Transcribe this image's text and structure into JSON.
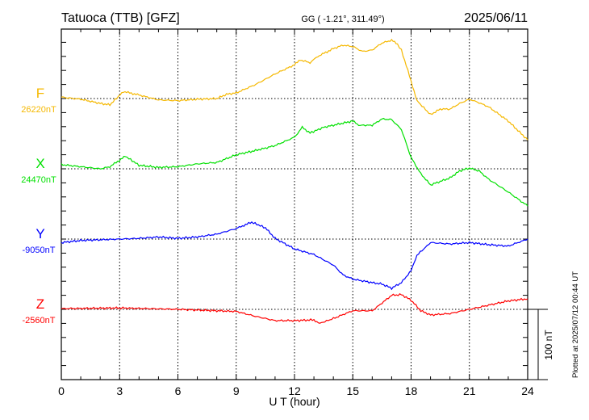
{
  "chart_data": {
    "type": "line",
    "title": "Tatuoca (TTB)  [GFZ]",
    "subtitle": "GG ( -1.21°, 311.49°)",
    "date": "2025/06/11",
    "xlabel": "U T (hour)",
    "xlim": [
      0,
      24
    ],
    "xticks": [
      "0",
      "3",
      "6",
      "9",
      "12",
      "15",
      "18",
      "21",
      "24"
    ],
    "scale_bar_label": "100 nT",
    "scale_bar_nT": 100,
    "plotted_note": "Plotted at 2025/07/12 00:44 UT",
    "grid": true,
    "series": [
      {
        "name": "F",
        "baseline_label": "26220nT",
        "color": "#f5b800",
        "x": [
          0,
          1,
          2,
          2.5,
          3.2,
          4,
          5,
          6,
          7,
          8,
          8.5,
          9,
          10,
          11,
          12,
          12.3,
          12.8,
          13.2,
          14,
          14.5,
          15,
          15.5,
          16,
          16.5,
          17,
          17.3,
          17.5,
          18,
          18.3,
          19,
          19.5,
          20,
          20.5,
          21,
          21.5,
          22,
          23,
          24
        ],
        "values": [
          2,
          -1,
          -7,
          -9,
          10,
          5,
          -2,
          -3,
          -1,
          0,
          6,
          8,
          20,
          35,
          48,
          55,
          51,
          60,
          71,
          76,
          74,
          67,
          69,
          79,
          83,
          77,
          69,
          25,
          -3,
          -23,
          -15,
          -15,
          -7,
          -1,
          -6,
          -12,
          -32,
          -59
        ]
      },
      {
        "name": "X",
        "baseline_label": "24470nT",
        "color": "#00e000",
        "x": [
          0,
          1,
          2,
          2.5,
          3.3,
          4,
          5,
          6,
          7,
          8,
          9,
          10,
          11,
          12,
          12.4,
          12.8,
          13.5,
          14,
          15,
          15.3,
          16,
          16.5,
          17,
          17.5,
          18,
          18.5,
          19,
          20,
          20.5,
          21,
          21.5,
          22,
          23,
          24
        ],
        "values": [
          6,
          3,
          0,
          3,
          18,
          5,
          2,
          3,
          7,
          9,
          20,
          26,
          33,
          45,
          59,
          51,
          59,
          62,
          68,
          62,
          62,
          71,
          70,
          56,
          16,
          -7,
          -23,
          -13,
          -3,
          1,
          -3,
          -15,
          -33,
          -53
        ]
      },
      {
        "name": "Y",
        "baseline_label": "-9050nT",
        "color": "#0000ff",
        "x": [
          0,
          1,
          2,
          3,
          4,
          5,
          6,
          7,
          8,
          9,
          9.8,
          10.5,
          11,
          12,
          13,
          14,
          14.5,
          15,
          16,
          16.5,
          17,
          17.5,
          18,
          18.3,
          19,
          20,
          21,
          22,
          23,
          24
        ],
        "values": [
          -5,
          -2,
          -1,
          0,
          1,
          3,
          1,
          3,
          7,
          15,
          24,
          16,
          1,
          -14,
          -22,
          -37,
          -51,
          -57,
          -62,
          -64,
          -70,
          -62,
          -45,
          -23,
          -5,
          -7,
          -5,
          -8,
          -10,
          0
        ]
      },
      {
        "name": "Z",
        "baseline_label": "-2560nT",
        "color": "#ff0000",
        "x": [
          0,
          3,
          6,
          9,
          10,
          11,
          12,
          13,
          13.3,
          14,
          15,
          16,
          17,
          17.5,
          18,
          18.5,
          19,
          20,
          21,
          22,
          23,
          24
        ],
        "values": [
          1,
          2,
          0,
          -3,
          -10,
          -16,
          -16,
          -15,
          -20,
          -13,
          -2,
          -2,
          20,
          21,
          13,
          -2,
          -8,
          -6,
          0,
          6,
          12,
          15
        ]
      }
    ]
  }
}
